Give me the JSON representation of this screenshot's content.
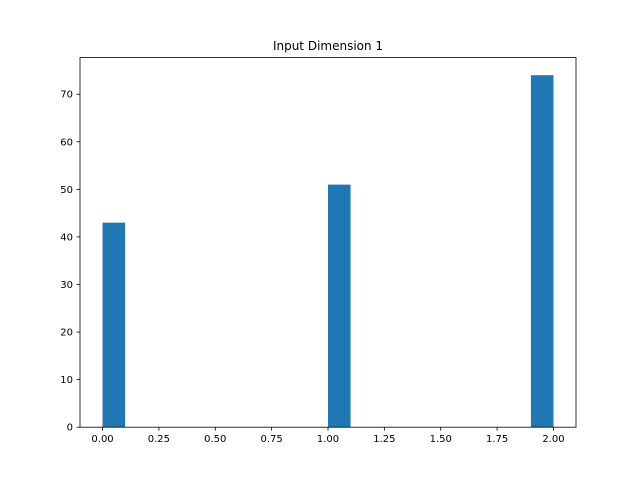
{
  "chart_data": {
    "type": "bar",
    "title": "Input Dimension 1",
    "xlabel": "",
    "ylabel": "",
    "xlim": [
      -0.1,
      2.1
    ],
    "ylim": [
      0,
      77.7
    ],
    "bars": [
      {
        "x0": 0.0,
        "x1": 0.1,
        "value": 43
      },
      {
        "x0": 1.0,
        "x1": 1.1,
        "value": 51
      },
      {
        "x0": 1.9,
        "x1": 2.0,
        "value": 74
      }
    ],
    "xticks": [
      {
        "value": 0.0,
        "label": "0.00"
      },
      {
        "value": 0.25,
        "label": "0.25"
      },
      {
        "value": 0.5,
        "label": "0.50"
      },
      {
        "value": 0.75,
        "label": "0.75"
      },
      {
        "value": 1.0,
        "label": "1.00"
      },
      {
        "value": 1.25,
        "label": "1.25"
      },
      {
        "value": 1.5,
        "label": "1.50"
      },
      {
        "value": 1.75,
        "label": "1.75"
      },
      {
        "value": 2.0,
        "label": "2.00"
      }
    ],
    "yticks": [
      {
        "value": 0,
        "label": "0"
      },
      {
        "value": 10,
        "label": "10"
      },
      {
        "value": 20,
        "label": "20"
      },
      {
        "value": 30,
        "label": "30"
      },
      {
        "value": 40,
        "label": "40"
      },
      {
        "value": 50,
        "label": "50"
      },
      {
        "value": 60,
        "label": "60"
      },
      {
        "value": 70,
        "label": "70"
      }
    ],
    "grid": false,
    "bar_color": "#1f77b4"
  }
}
